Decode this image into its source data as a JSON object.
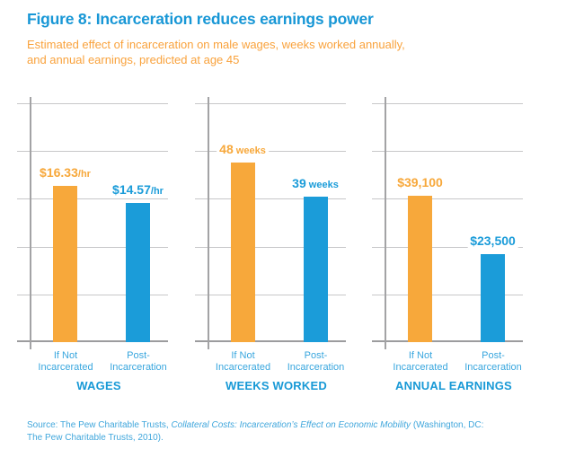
{
  "header": {
    "title": "Figure 8: Incarceration reduces earnings power",
    "subtitle_line1": "Estimated effect of incarceration on male wages, weeks worked annually,",
    "subtitle_line2": "and annual earnings, predicted at age 45"
  },
  "colors": {
    "title_blue": "#1897d6",
    "subtitle_orange": "#f9a23c",
    "bar_orange": "#f7a83b",
    "bar_blue": "#1b9cd9",
    "category_label_blue": "#38a6de",
    "panel_title_blue": "#1899d6",
    "gridline_gray": "#c7c7c9",
    "axis_gray": "#a3a3a5",
    "source_blue": "#41a7dc"
  },
  "chart_data": {
    "type": "bar",
    "title": "Figure 8: Incarceration reduces earnings power",
    "subtitle": "Estimated effect of incarceration on male wages, weeks worked annually, and annual earnings, predicted at age 45",
    "categories": [
      "If Not Incarcerated",
      "Post-Incarceration"
    ],
    "legend_position": "none",
    "grid": true,
    "gridline_count": 6,
    "yticks_visible": false,
    "panels": [
      {
        "title": "WAGES",
        "axis_max": 25,
        "bars": [
          {
            "category": [
              "If Not",
              "Incarcerated"
            ],
            "value": 16.33,
            "label_main": "$16.33",
            "label_suffix": "/hr",
            "color": "#f7a83b"
          },
          {
            "category": [
              "Post-",
              "Incarceration"
            ],
            "value": 14.57,
            "label_main": "$14.57",
            "label_suffix": "/hr",
            "color": "#1b9cd9"
          }
        ]
      },
      {
        "title": "WEEKS WORKED",
        "axis_max": 64,
        "bars": [
          {
            "category": [
              "If Not",
              "Incarcerated"
            ],
            "value": 48,
            "label_main": "48",
            "label_suffix": " weeks",
            "color": "#f7a83b"
          },
          {
            "category": [
              "Post-",
              "Incarceration"
            ],
            "value": 39,
            "label_main": "39",
            "label_suffix": " weeks",
            "color": "#1b9cd9"
          }
        ]
      },
      {
        "title": "ANNUAL EARNINGS",
        "axis_max": 64000,
        "bars": [
          {
            "category": [
              "If Not",
              "Incarcerated"
            ],
            "value": 39100,
            "label_main": "$39,100",
            "label_suffix": "",
            "color": "#f7a83b"
          },
          {
            "category": [
              "Post-",
              "Incarceration"
            ],
            "value": 23500,
            "label_main": "$23,500",
            "label_suffix": "",
            "color": "#1b9cd9"
          }
        ]
      }
    ]
  },
  "source": {
    "prefix": "Source: The Pew Charitable Trusts, ",
    "title_italic": "Collateral Costs: Incarceration’s Effect on Economic Mobility",
    "line1_end": " (Washington, DC:",
    "line2": "The Pew Charitable Trusts, 2010)."
  }
}
